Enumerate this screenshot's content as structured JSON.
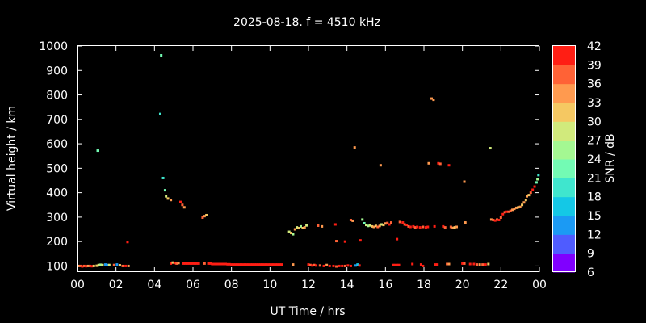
{
  "chart_data": {
    "type": "scatter",
    "title": "2025-08-18. f = 4510 kHz",
    "xlabel": "UT Time / hrs",
    "ylabel": "Virtual height / km",
    "xlim": [
      0,
      24
    ],
    "ylim": [
      75,
      1000
    ],
    "x_ticks": [
      "00",
      "02",
      "04",
      "06",
      "08",
      "10",
      "12",
      "14",
      "16",
      "18",
      "20",
      "22",
      "00"
    ],
    "y_ticks": [
      100,
      200,
      300,
      400,
      500,
      600,
      700,
      800,
      900,
      1000
    ],
    "grid": false,
    "colorbar": {
      "label": "SNR / dB",
      "ticks": [
        6,
        9,
        12,
        15,
        18,
        21,
        24,
        27,
        30,
        33,
        36,
        39,
        42
      ],
      "bands": [
        "#8000ff",
        "#4f5cff",
        "#1b9af4",
        "#14c8e6",
        "#3fe6ce",
        "#73fbb4",
        "#a4f892",
        "#d1ea7c",
        "#f5c862",
        "#ff9a4f",
        "#ff6236",
        "#ff1e14"
      ]
    },
    "series": [
      {
        "points": [
          [
            0.05,
            100,
            33
          ],
          [
            0.15,
            100,
            36
          ],
          [
            0.25,
            98,
            39
          ],
          [
            0.35,
            100,
            36
          ],
          [
            0.45,
            99,
            39
          ],
          [
            0.55,
            100,
            33
          ],
          [
            0.65,
            100,
            36
          ],
          [
            0.75,
            99,
            39
          ],
          [
            0.85,
            100,
            30
          ],
          [
            1.0,
            101,
            30
          ],
          [
            1.1,
            104,
            27
          ],
          [
            1.2,
            105,
            24
          ],
          [
            1.3,
            104,
            27
          ],
          [
            1.45,
            106,
            14
          ],
          [
            1.55,
            104,
            12
          ],
          [
            1.65,
            104,
            27
          ],
          [
            1.9,
            104,
            36
          ],
          [
            2.05,
            106,
            12
          ],
          [
            2.2,
            103,
            30
          ],
          [
            2.35,
            100,
            36
          ],
          [
            2.5,
            100,
            39
          ],
          [
            2.65,
            100,
            33
          ],
          [
            4.85,
            110,
            39
          ],
          [
            4.95,
            114,
            30
          ],
          [
            5.05,
            112,
            39
          ],
          [
            5.15,
            110,
            36
          ],
          [
            5.25,
            112,
            33
          ],
          [
            5.5,
            110,
            39
          ],
          [
            5.6,
            110,
            39
          ],
          [
            5.7,
            110,
            39
          ],
          [
            5.8,
            110,
            39
          ],
          [
            5.9,
            110,
            39
          ],
          [
            6.0,
            110,
            39
          ],
          [
            6.1,
            110,
            39
          ],
          [
            6.2,
            110,
            39
          ],
          [
            6.3,
            110,
            39
          ],
          [
            6.6,
            110,
            36
          ],
          [
            6.8,
            110,
            39
          ],
          [
            6.9,
            110,
            39
          ],
          [
            7.0,
            108,
            39
          ],
          [
            7.1,
            108,
            39
          ],
          [
            7.2,
            108,
            39
          ],
          [
            7.3,
            108,
            39
          ],
          [
            7.4,
            108,
            39
          ],
          [
            7.5,
            108,
            39
          ],
          [
            7.6,
            108,
            39
          ],
          [
            7.7,
            108,
            39
          ],
          [
            7.8,
            107,
            39
          ],
          [
            7.9,
            107,
            39
          ],
          [
            8.0,
            106,
            39
          ],
          [
            8.1,
            106,
            39
          ],
          [
            8.2,
            106,
            39
          ],
          [
            8.3,
            106,
            39
          ],
          [
            8.4,
            106,
            39
          ],
          [
            8.5,
            106,
            39
          ],
          [
            8.6,
            106,
            39
          ],
          [
            8.7,
            106,
            39
          ],
          [
            8.8,
            106,
            39
          ],
          [
            8.9,
            106,
            39
          ],
          [
            9.0,
            106,
            39
          ],
          [
            9.1,
            106,
            39
          ],
          [
            9.2,
            106,
            39
          ],
          [
            9.3,
            106,
            39
          ],
          [
            9.4,
            106,
            39
          ],
          [
            9.5,
            106,
            39
          ],
          [
            9.6,
            106,
            39
          ],
          [
            9.7,
            106,
            39
          ],
          [
            9.8,
            106,
            39
          ],
          [
            9.9,
            106,
            39
          ],
          [
            10.0,
            106,
            39
          ],
          [
            10.1,
            106,
            39
          ],
          [
            10.2,
            106,
            39
          ],
          [
            10.3,
            106,
            39
          ],
          [
            10.4,
            106,
            39
          ],
          [
            10.5,
            106,
            39
          ],
          [
            10.6,
            106,
            39
          ],
          [
            11.2,
            106,
            33
          ],
          [
            12.0,
            106,
            39
          ],
          [
            12.1,
            104,
            36
          ],
          [
            12.2,
            102,
            39
          ],
          [
            12.3,
            104,
            36
          ],
          [
            12.4,
            102,
            39
          ],
          [
            12.6,
            102,
            36
          ],
          [
            12.8,
            100,
            39
          ],
          [
            12.95,
            104,
            33
          ],
          [
            13.1,
            100,
            39
          ],
          [
            13.3,
            100,
            39
          ],
          [
            13.45,
            98,
            36
          ],
          [
            13.6,
            100,
            39
          ],
          [
            13.75,
            100,
            39
          ],
          [
            13.9,
            100,
            36
          ],
          [
            14.05,
            102,
            39
          ],
          [
            14.2,
            100,
            39
          ],
          [
            14.45,
            102,
            12
          ],
          [
            14.55,
            106,
            15
          ],
          [
            14.65,
            102,
            39
          ],
          [
            16.4,
            104,
            39
          ],
          [
            16.5,
            104,
            39
          ],
          [
            16.6,
            104,
            39
          ],
          [
            16.7,
            104,
            39
          ],
          [
            17.4,
            108,
            39
          ],
          [
            17.85,
            106,
            39
          ],
          [
            17.95,
            100,
            39
          ],
          [
            18.6,
            106,
            39
          ],
          [
            18.7,
            106,
            39
          ],
          [
            19.2,
            108,
            36
          ],
          [
            19.3,
            108,
            33
          ],
          [
            20.0,
            110,
            39
          ],
          [
            20.1,
            110,
            36
          ],
          [
            20.4,
            108,
            39
          ],
          [
            20.6,
            108,
            39
          ],
          [
            20.75,
            106,
            36
          ],
          [
            20.9,
            106,
            33
          ],
          [
            21.05,
            106,
            36
          ],
          [
            21.2,
            106,
            39
          ],
          [
            21.35,
            108,
            30
          ]
        ]
      },
      {
        "points": [
          [
            1.05,
            572,
            21
          ],
          [
            2.6,
            198,
            39
          ],
          [
            4.3,
            722,
            18
          ],
          [
            4.35,
            962,
            21
          ],
          [
            4.45,
            460,
            18
          ],
          [
            4.55,
            410,
            21
          ],
          [
            4.6,
            385,
            27
          ],
          [
            4.7,
            376,
            30
          ],
          [
            4.85,
            370,
            33
          ],
          [
            5.35,
            362,
            39
          ],
          [
            5.45,
            350,
            36
          ],
          [
            5.55,
            340,
            33
          ],
          [
            6.5,
            298,
            36
          ],
          [
            6.6,
            304,
            33
          ],
          [
            6.7,
            308,
            30
          ],
          [
            11.0,
            240,
            27
          ],
          [
            11.1,
            235,
            30
          ],
          [
            11.2,
            230,
            24
          ],
          [
            11.3,
            250,
            33
          ],
          [
            11.4,
            258,
            27
          ],
          [
            11.5,
            255,
            30
          ],
          [
            11.6,
            262,
            24
          ],
          [
            11.7,
            255,
            30
          ],
          [
            11.8,
            258,
            33
          ],
          [
            11.9,
            266,
            27
          ],
          [
            12.5,
            265,
            36
          ],
          [
            12.7,
            262,
            33
          ],
          [
            13.4,
            270,
            39
          ],
          [
            13.45,
            202,
            36
          ],
          [
            13.9,
            200,
            39
          ],
          [
            14.2,
            288,
            36
          ],
          [
            14.3,
            285,
            33
          ],
          [
            14.4,
            585,
            33
          ],
          [
            14.7,
            205,
            39
          ],
          [
            14.8,
            290,
            24
          ],
          [
            14.9,
            275,
            21
          ],
          [
            15.0,
            268,
            27
          ],
          [
            15.1,
            264,
            24
          ],
          [
            15.2,
            266,
            27
          ],
          [
            15.3,
            262,
            30
          ],
          [
            15.4,
            260,
            33
          ],
          [
            15.5,
            264,
            30
          ],
          [
            15.6,
            260,
            36
          ],
          [
            15.7,
            264,
            33
          ],
          [
            15.75,
            512,
            33
          ],
          [
            15.8,
            270,
            27
          ],
          [
            15.9,
            268,
            30
          ],
          [
            16.0,
            274,
            33
          ],
          [
            16.1,
            276,
            36
          ],
          [
            16.2,
            270,
            39
          ],
          [
            16.3,
            278,
            36
          ],
          [
            16.6,
            210,
            39
          ],
          [
            16.75,
            280,
            36
          ],
          [
            16.9,
            278,
            39
          ],
          [
            17.0,
            270,
            36
          ],
          [
            17.1,
            268,
            39
          ],
          [
            17.2,
            262,
            36
          ],
          [
            17.3,
            260,
            39
          ],
          [
            17.45,
            262,
            39
          ],
          [
            17.55,
            258,
            36
          ],
          [
            17.65,
            260,
            39
          ],
          [
            17.8,
            258,
            39
          ],
          [
            17.95,
            260,
            36
          ],
          [
            18.1,
            258,
            39
          ],
          [
            18.2,
            260,
            39
          ],
          [
            18.25,
            520,
            33
          ],
          [
            18.4,
            785,
            33
          ],
          [
            18.5,
            780,
            33
          ],
          [
            18.55,
            262,
            39
          ],
          [
            18.75,
            520,
            39
          ],
          [
            18.85,
            518,
            36
          ],
          [
            19.0,
            262,
            39
          ],
          [
            19.1,
            258,
            36
          ],
          [
            19.3,
            512,
            39
          ],
          [
            19.4,
            260,
            36
          ],
          [
            19.5,
            256,
            33
          ],
          [
            19.6,
            258,
            30
          ],
          [
            19.7,
            260,
            33
          ],
          [
            20.1,
            445,
            33
          ],
          [
            20.15,
            278,
            33
          ],
          [
            21.45,
            582,
            27
          ],
          [
            21.5,
            290,
            33
          ],
          [
            21.6,
            288,
            36
          ],
          [
            21.7,
            286,
            39
          ],
          [
            21.8,
            290,
            36
          ],
          [
            21.9,
            288,
            39
          ],
          [
            22.0,
            298,
            36
          ],
          [
            22.1,
            312,
            39
          ],
          [
            22.2,
            320,
            36
          ],
          [
            22.3,
            322,
            39
          ],
          [
            22.4,
            322,
            36
          ],
          [
            22.5,
            326,
            36
          ],
          [
            22.6,
            330,
            33
          ],
          [
            22.7,
            334,
            33
          ],
          [
            22.8,
            338,
            33
          ],
          [
            22.9,
            340,
            30
          ],
          [
            23.0,
            342,
            33
          ],
          [
            23.1,
            350,
            30
          ],
          [
            23.2,
            360,
            33
          ],
          [
            23.3,
            370,
            30
          ],
          [
            23.35,
            385,
            33
          ],
          [
            23.45,
            390,
            30
          ],
          [
            23.55,
            400,
            36
          ],
          [
            23.65,
            412,
            39
          ],
          [
            23.75,
            425,
            39
          ],
          [
            23.85,
            442,
            21
          ],
          [
            23.9,
            455,
            24
          ],
          [
            23.95,
            472,
            18
          ]
        ]
      }
    ]
  }
}
